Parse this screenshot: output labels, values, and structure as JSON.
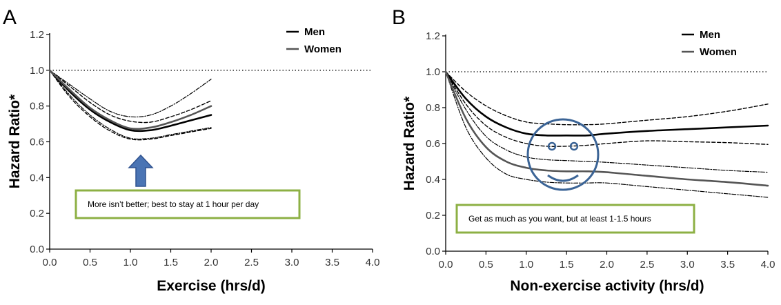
{
  "chart_data": [
    {
      "panel": "A",
      "type": "line",
      "xlabel": "Exercise (hrs/d)",
      "ylabel": "Hazard Ratio*",
      "xlim": [
        0,
        4
      ],
      "ylim": [
        0,
        1.2
      ],
      "xticks": [
        "0.0",
        "0.5",
        "1.0",
        "1.5",
        "2.0",
        "2.5",
        "3.0",
        "3.5",
        "4.0"
      ],
      "yticks": [
        "0.0",
        "0.2",
        "0.4",
        "0.6",
        "0.8",
        "1.0",
        "1.2"
      ],
      "reference_line": 1.0,
      "legend": [
        "Men",
        "Women"
      ],
      "legend_position": "top-right",
      "series": [
        {
          "name": "Men",
          "role": "estimate",
          "style": "solid-black",
          "x": [
            0,
            0.25,
            0.5,
            0.75,
            1.0,
            1.25,
            1.5,
            1.75,
            2.0
          ],
          "y": [
            1.0,
            0.88,
            0.78,
            0.71,
            0.665,
            0.665,
            0.69,
            0.72,
            0.75
          ]
        },
        {
          "name": "Women",
          "role": "estimate",
          "style": "solid-gray",
          "x": [
            0,
            0.25,
            0.5,
            0.75,
            1.0,
            1.25,
            1.5,
            1.75,
            2.0
          ],
          "y": [
            1.0,
            0.89,
            0.79,
            0.72,
            0.675,
            0.68,
            0.71,
            0.75,
            0.8
          ]
        },
        {
          "role": "men-upper-ci",
          "style": "dashed",
          "x": [
            0,
            0.25,
            0.5,
            0.75,
            1.0,
            1.25,
            1.5,
            1.75,
            2.0
          ],
          "y": [
            1.0,
            0.91,
            0.82,
            0.75,
            0.715,
            0.71,
            0.74,
            0.78,
            0.83
          ]
        },
        {
          "role": "men-lower-ci",
          "style": "dashed",
          "x": [
            0,
            0.25,
            0.5,
            0.75,
            1.0,
            1.25,
            1.5,
            1.75,
            2.0
          ],
          "y": [
            1.0,
            0.85,
            0.74,
            0.66,
            0.615,
            0.615,
            0.635,
            0.655,
            0.675
          ]
        },
        {
          "role": "women-upper-ci",
          "style": "dash-dot",
          "x": [
            0,
            0.25,
            0.5,
            0.75,
            1.0,
            1.25,
            1.5,
            1.75,
            2.0
          ],
          "y": [
            1.0,
            0.92,
            0.84,
            0.77,
            0.74,
            0.75,
            0.8,
            0.87,
            0.95
          ]
        },
        {
          "role": "women-lower-ci",
          "style": "dash-dot",
          "x": [
            0,
            0.25,
            0.5,
            0.75,
            1.0,
            1.25,
            1.5,
            1.75,
            2.0
          ],
          "y": [
            1.0,
            0.86,
            0.75,
            0.67,
            0.62,
            0.62,
            0.64,
            0.66,
            0.68
          ]
        }
      ],
      "annotation": {
        "text": "More isn’t better; best to stay at 1 hour per day",
        "arrow_at_x": 1.1
      }
    },
    {
      "panel": "B",
      "type": "line",
      "xlabel": "Non-exercise activity (hrs/d)",
      "ylabel": "Hazard Ratio*",
      "xlim": [
        0,
        4
      ],
      "ylim": [
        0,
        1.2
      ],
      "xticks": [
        "0.0",
        "0.5",
        "1.0",
        "1.5",
        "2.0",
        "2.5",
        "3.0",
        "3.5",
        "4.0"
      ],
      "yticks": [
        "0.0",
        "0.2",
        "0.4",
        "0.6",
        "0.8",
        "1.0",
        "1.2"
      ],
      "reference_line": 1.0,
      "legend": [
        "Men",
        "Women"
      ],
      "legend_position": "top-right",
      "series": [
        {
          "name": "Men",
          "role": "estimate",
          "style": "solid-black",
          "x": [
            0,
            0.25,
            0.5,
            0.75,
            1.0,
            1.25,
            1.5,
            1.75,
            2.0,
            2.5,
            3.0,
            3.5,
            4.0
          ],
          "y": [
            1.0,
            0.85,
            0.75,
            0.69,
            0.655,
            0.645,
            0.645,
            0.645,
            0.655,
            0.67,
            0.68,
            0.69,
            0.7
          ]
        },
        {
          "name": "Women",
          "role": "estimate",
          "style": "solid-gray",
          "x": [
            0,
            0.25,
            0.5,
            0.75,
            1.0,
            1.25,
            1.5,
            1.75,
            2.0,
            2.5,
            3.0,
            3.5,
            4.0
          ],
          "y": [
            1.0,
            0.74,
            0.58,
            0.5,
            0.465,
            0.45,
            0.445,
            0.445,
            0.44,
            0.42,
            0.4,
            0.385,
            0.365
          ]
        },
        {
          "role": "men-upper-ci",
          "style": "dashed",
          "x": [
            0,
            0.25,
            0.5,
            0.75,
            1.0,
            1.25,
            1.5,
            1.75,
            2.0,
            2.5,
            3.0,
            3.5,
            4.0
          ],
          "y": [
            1.0,
            0.89,
            0.81,
            0.755,
            0.72,
            0.71,
            0.705,
            0.705,
            0.71,
            0.73,
            0.75,
            0.78,
            0.82
          ]
        },
        {
          "role": "men-lower-ci",
          "style": "dashed",
          "x": [
            0,
            0.25,
            0.5,
            0.75,
            1.0,
            1.25,
            1.5,
            1.75,
            2.0,
            2.5,
            3.0,
            3.5,
            4.0
          ],
          "y": [
            1.0,
            0.82,
            0.7,
            0.635,
            0.6,
            0.585,
            0.585,
            0.59,
            0.6,
            0.615,
            0.61,
            0.605,
            0.595
          ]
        },
        {
          "role": "women-upper-ci",
          "style": "dash-dot",
          "x": [
            0,
            0.25,
            0.5,
            0.75,
            1.0,
            1.25,
            1.5,
            1.75,
            2.0,
            2.5,
            3.0,
            3.5,
            4.0
          ],
          "y": [
            1.0,
            0.79,
            0.64,
            0.565,
            0.525,
            0.51,
            0.505,
            0.5,
            0.495,
            0.48,
            0.465,
            0.45,
            0.44
          ]
        },
        {
          "role": "women-lower-ci",
          "style": "dash-dot",
          "x": [
            0,
            0.25,
            0.5,
            0.75,
            1.0,
            1.25,
            1.5,
            1.75,
            2.0,
            2.5,
            3.0,
            3.5,
            4.0
          ],
          "y": [
            1.0,
            0.69,
            0.52,
            0.43,
            0.4,
            0.385,
            0.38,
            0.38,
            0.38,
            0.36,
            0.34,
            0.32,
            0.3
          ]
        }
      ],
      "annotation": {
        "text": "Get as much as you want, but at least 1-1.5 hours",
        "smiley_at_x": 1.5
      }
    }
  ],
  "colors": {
    "men": "#000000",
    "women": "#555555",
    "ci": "#000000",
    "arrow": "#4a74b4",
    "note_border": "#8db044",
    "smiley": "#3b6496"
  }
}
